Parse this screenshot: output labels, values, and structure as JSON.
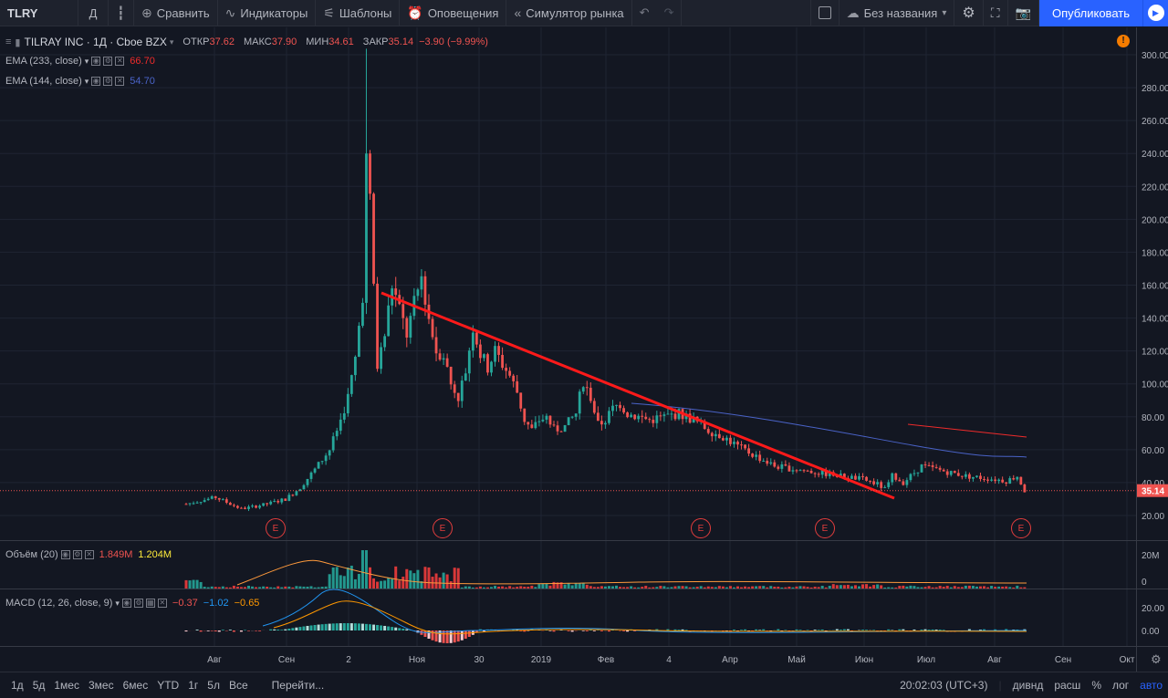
{
  "toolbar": {
    "symbol": "TLRY",
    "interval": "Д",
    "compare": "Сравнить",
    "indicators": "Индикаторы",
    "templates": "Шаблоны",
    "alerts": "Оповещения",
    "replay": "Симулятор рынка",
    "layout_name": "Без названия",
    "publish": "Опубликовать"
  },
  "legend": {
    "title": "TILRAY INC · 1Д · Cboe BZX",
    "open_label": "ОТКР",
    "open": "37.62",
    "high_label": "МАКС",
    "high": "37.90",
    "low_label": "МИН",
    "low": "34.61",
    "close_label": "ЗАКР",
    "close": "35.14",
    "change": "−3.90 (−9.99%)",
    "ema1_label": "EMA (233, close)",
    "ema1_value": "66.70",
    "ema2_label": "EMA (144, close)",
    "ema2_value": "54.70",
    "volume_label": "Объём (20)",
    "volume_v1": "1.849M",
    "volume_v2": "1.204M",
    "macd_label": "MACD (12, 26, close, 9)",
    "macd_v1": "−0.37",
    "macd_v2": "−1.02",
    "macd_v3": "−0.65"
  },
  "earnings_label": "E",
  "price_axis": [
    "300.00",
    "280.00",
    "260.00",
    "240.00",
    "220.00",
    "200.00",
    "180.00",
    "160.00",
    "140.00",
    "120.00",
    "100.00",
    "80.00",
    "60.00",
    "40.00",
    "20.00"
  ],
  "last_price": "35.14",
  "volume_axis": [
    "20M",
    "0"
  ],
  "macd_axis": [
    "20.00",
    "0.00"
  ],
  "time_axis": [
    "Авг",
    "Сен",
    "2",
    "Ноя",
    "30",
    "2019",
    "Фев",
    "4",
    "Апр",
    "Май",
    "Июн",
    "Июл",
    "Авг",
    "Сен",
    "Окт"
  ],
  "bottombar": {
    "ranges": [
      "1д",
      "5д",
      "1мес",
      "3мес",
      "6мес",
      "YTD",
      "1г",
      "5л",
      "Все"
    ],
    "goto": "Перейти...",
    "time": "20:02:03 (UTC+3)",
    "dividends": "дивнд",
    "extended": "расш",
    "percent": "%",
    "log": "лог",
    "auto": "авто"
  },
  "colors": {
    "up": "#26a69a",
    "down": "#ef5350",
    "ema233": "#ef2b2b",
    "ema144": "#4a63c8",
    "trend": "#ff1a1a",
    "accent": "#2962ff"
  },
  "chart_data": {
    "type": "candlestick",
    "ylim": [
      10,
      305
    ],
    "series_close": [
      [
        0,
        27
      ],
      [
        8,
        31
      ],
      [
        15,
        24
      ],
      [
        22,
        27
      ],
      [
        27,
        30
      ],
      [
        31,
        37
      ],
      [
        35,
        48
      ],
      [
        39,
        60
      ],
      [
        42,
        78
      ],
      [
        44,
        92
      ],
      [
        46,
        115
      ],
      [
        48,
        155
      ],
      [
        49,
        240
      ],
      [
        50,
        210
      ],
      [
        52,
        110
      ],
      [
        54,
        130
      ],
      [
        56,
        160
      ],
      [
        58,
        145
      ],
      [
        60,
        130
      ],
      [
        62,
        148
      ],
      [
        64,
        165
      ],
      [
        66,
        140
      ],
      [
        68,
        120
      ],
      [
        70,
        118
      ],
      [
        72,
        100
      ],
      [
        74,
        92
      ],
      [
        76,
        108
      ],
      [
        78,
        135
      ],
      [
        80,
        118
      ],
      [
        82,
        110
      ],
      [
        84,
        120
      ],
      [
        86,
        112
      ],
      [
        88,
        105
      ],
      [
        90,
        95
      ],
      [
        92,
        78
      ],
      [
        94,
        72
      ],
      [
        96,
        78
      ],
      [
        98,
        80
      ],
      [
        100,
        72
      ],
      [
        103,
        74
      ],
      [
        106,
        82
      ],
      [
        108,
        102
      ],
      [
        110,
        92
      ],
      [
        112,
        75
      ],
      [
        114,
        78
      ],
      [
        116,
        85
      ],
      [
        118,
        88
      ],
      [
        120,
        82
      ],
      [
        123,
        80
      ],
      [
        126,
        78
      ],
      [
        130,
        80
      ],
      [
        134,
        82
      ],
      [
        138,
        78
      ],
      [
        142,
        72
      ],
      [
        146,
        68
      ],
      [
        150,
        62
      ],
      [
        155,
        56
      ],
      [
        160,
        50
      ],
      [
        166,
        48
      ],
      [
        172,
        46
      ],
      [
        178,
        44
      ],
      [
        184,
        42
      ],
      [
        188,
        39
      ],
      [
        190,
        36
      ],
      [
        192,
        44
      ],
      [
        195,
        40
      ],
      [
        198,
        46
      ],
      [
        200,
        50
      ],
      [
        204,
        48
      ],
      [
        208,
        46
      ],
      [
        212,
        44
      ],
      [
        216,
        43
      ],
      [
        220,
        42
      ],
      [
        223,
        41
      ],
      [
        226,
        44
      ],
      [
        228,
        35
      ]
    ]
  }
}
